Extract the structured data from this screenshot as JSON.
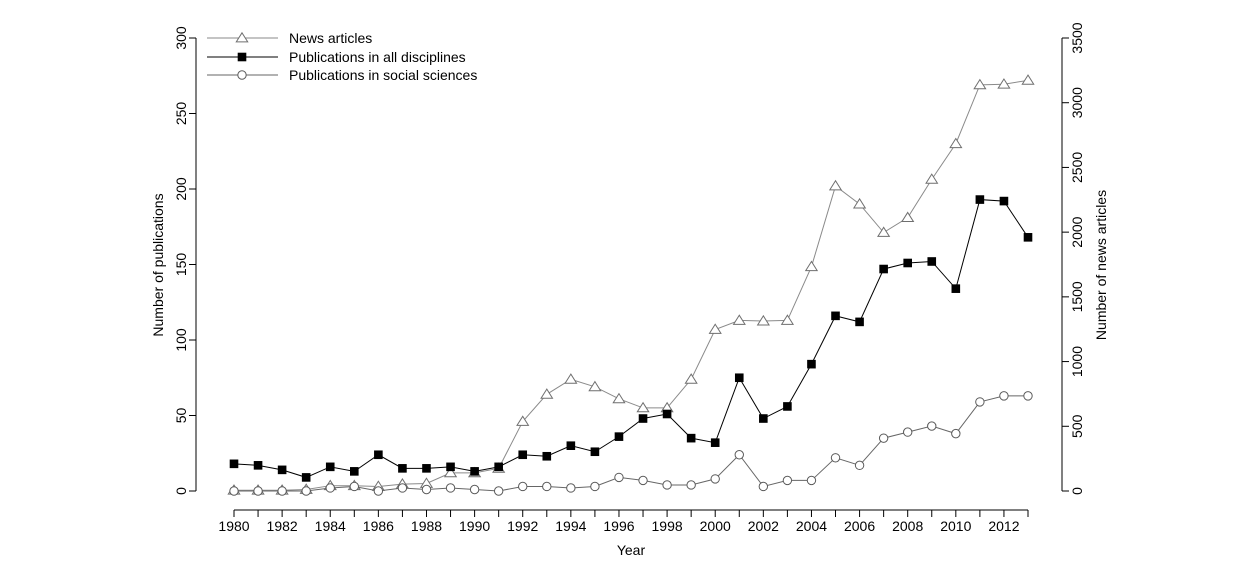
{
  "chart_data": {
    "type": "line",
    "xlabel": "Year",
    "ylabel": "Number of publications",
    "y2label": "Number of news articles",
    "x": [
      1980,
      1981,
      1982,
      1983,
      1984,
      1985,
      1986,
      1987,
      1988,
      1989,
      1990,
      1991,
      1992,
      1993,
      1994,
      1995,
      1996,
      1997,
      1998,
      1999,
      2000,
      2001,
      2002,
      2003,
      2004,
      2005,
      2006,
      2007,
      2008,
      2009,
      2010,
      2011,
      2012,
      2013
    ],
    "xticks": [
      "1980",
      "1982",
      "1984",
      "1986",
      "1988",
      "1990",
      "1992",
      "1994",
      "1996",
      "1998",
      "2000",
      "2002",
      "2004",
      "2006",
      "2008",
      "2010",
      "2012"
    ],
    "ylim": [
      0,
      300
    ],
    "yticks": [
      "0",
      "50",
      "100",
      "150",
      "200",
      "250",
      "300"
    ],
    "y2lim": [
      0,
      3500
    ],
    "y2ticks": [
      "0",
      "500",
      "1000",
      "1500",
      "2000",
      "2500",
      "3000",
      "3500"
    ],
    "legend_position": "top-left",
    "series": [
      {
        "name": "News articles",
        "axis": "right",
        "marker": "triangle",
        "color": "#8a8a8a",
        "values": [
          6,
          6,
          6,
          12,
          41,
          41,
          35,
          53,
          58,
          140,
          140,
          175,
          537,
          747,
          863,
          805,
          712,
          642,
          642,
          863,
          1248,
          1318,
          1313,
          1318,
          1733,
          2357,
          2217,
          1997,
          2112,
          2408,
          2683,
          3138,
          3143,
          3173
        ]
      },
      {
        "name": "Publications in all disciplines",
        "axis": "left",
        "marker": "square",
        "color": "#000000",
        "values": [
          18,
          17,
          14,
          9,
          16,
          13,
          24,
          15,
          15,
          16,
          13,
          16,
          24,
          23,
          30,
          26,
          36,
          48,
          51,
          35,
          32,
          75,
          48,
          56,
          84,
          116,
          112,
          147,
          151,
          152,
          134,
          193,
          192,
          168
        ]
      },
      {
        "name": "Publications in social sciences",
        "axis": "left",
        "marker": "circle",
        "color": "#666666",
        "values": [
          0,
          0,
          0,
          0,
          2,
          3,
          0,
          2,
          1,
          2,
          1,
          0,
          3,
          3,
          2,
          3,
          9,
          7,
          4,
          4,
          8,
          24,
          3,
          7,
          7,
          22,
          17,
          35,
          39,
          43,
          38,
          59,
          63,
          63
        ]
      }
    ]
  }
}
